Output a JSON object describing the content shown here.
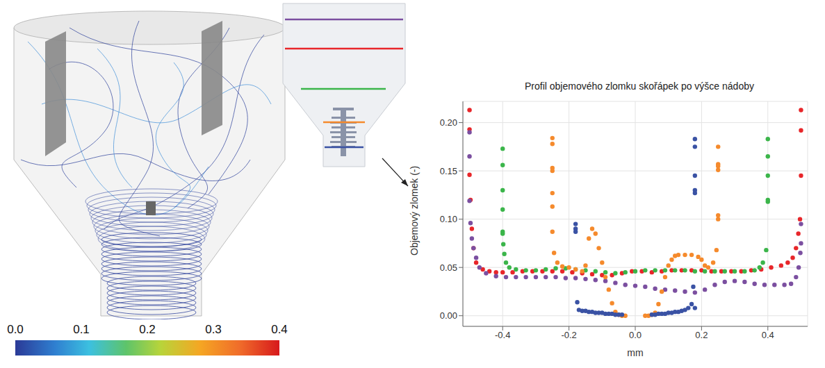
{
  "chart_data": {
    "type": "scatter",
    "title": "Profil objemového zlomku skořápek po výšce nádoby",
    "x_label": "mm",
    "y_label": "Objemový zlomek (-)",
    "xlim": [
      -0.52,
      0.52
    ],
    "xticks": [
      -0.4,
      -0.2,
      {
        "value": 0,
        "label": "0.0"
      },
      0.2,
      0.4
    ],
    "ylim": [
      -0.011,
      0.222
    ],
    "yticks": [
      {
        "value": 0,
        "label": "0.00"
      },
      0.05,
      {
        "value": 0.1,
        "label": "0.10"
      },
      0.15,
      {
        "value": 0.2,
        "label": "0.20"
      }
    ],
    "grid": true,
    "marker": "circle",
    "series": [
      {
        "color": "#e8262a",
        "x": [
          -0.5,
          -0.5,
          -0.5,
          -0.497,
          -0.493,
          -0.488,
          -0.48,
          -0.46,
          -0.44,
          -0.42,
          -0.4,
          -0.37,
          -0.34,
          -0.31,
          -0.28,
          -0.25,
          -0.22,
          -0.19,
          -0.16,
          -0.13,
          -0.1,
          -0.07,
          -0.04,
          -0.01,
          0.02,
          0.05,
          0.08,
          0.11,
          0.14,
          0.17,
          0.2,
          0.23,
          0.26,
          0.29,
          0.32,
          0.35,
          0.38,
          0.41,
          0.44,
          0.46,
          0.475,
          0.485,
          0.492,
          0.497,
          0.5,
          0.5,
          0.5
        ],
        "values": [
          0.213,
          0.193,
          0.146,
          0.12,
          0.09,
          0.07,
          0.055,
          0.048,
          0.046,
          0.045,
          0.045,
          0.045,
          0.046,
          0.046,
          0.046,
          0.046,
          0.046,
          0.045,
          0.044,
          0.043,
          0.042,
          0.042,
          0.044,
          0.046,
          0.046,
          0.045,
          0.046,
          0.047,
          0.047,
          0.047,
          0.047,
          0.046,
          0.046,
          0.046,
          0.046,
          0.047,
          0.048,
          0.05,
          0.052,
          0.055,
          0.06,
          0.07,
          0.085,
          0.1,
          0.145,
          0.192,
          0.213
        ]
      },
      {
        "color": "#7b4fa0",
        "x": [
          -0.5,
          -0.5,
          -0.5,
          -0.497,
          -0.493,
          -0.488,
          -0.48,
          -0.47,
          -0.45,
          -0.42,
          -0.39,
          -0.36,
          -0.33,
          -0.3,
          -0.27,
          -0.24,
          -0.21,
          -0.18,
          -0.15,
          -0.12,
          -0.09,
          -0.06,
          -0.03,
          0,
          0.03,
          0.06,
          0.09,
          0.12,
          0.15,
          0.18,
          0.21,
          0.24,
          0.27,
          0.3,
          0.33,
          0.36,
          0.39,
          0.42,
          0.45,
          0.47,
          0.485,
          0.493,
          0.498,
          0.5,
          0.5
        ],
        "values": [
          0.19,
          0.165,
          0.119,
          0.096,
          0.08,
          0.07,
          0.06,
          0.05,
          0.044,
          0.041,
          0.04,
          0.04,
          0.04,
          0.04,
          0.04,
          0.04,
          0.039,
          0.039,
          0.038,
          0.037,
          0.036,
          0.034,
          0.032,
          0.031,
          0.03,
          0.028,
          0.027,
          0.026,
          0.025,
          0.024,
          0.027,
          0.032,
          0.035,
          0.036,
          0.035,
          0.033,
          0.032,
          0.032,
          0.032,
          0.033,
          0.04,
          0.05,
          0.065,
          0.075,
          0.095
        ]
      },
      {
        "color": "#3bb54a",
        "x": [
          -0.4,
          -0.4,
          -0.4,
          -0.4,
          -0.4,
          -0.4,
          -0.398,
          -0.395,
          -0.39,
          -0.38,
          -0.36,
          -0.33,
          -0.3,
          -0.27,
          -0.24,
          -0.21,
          -0.18,
          -0.15,
          -0.12,
          -0.09,
          -0.06,
          -0.03,
          0,
          0.03,
          0.06,
          0.09,
          0.12,
          0.15,
          0.18,
          0.21,
          0.24,
          0.27,
          0.3,
          0.33,
          0.36,
          0.375,
          0.385,
          0.395,
          0.4,
          0.4,
          0.4,
          0.4,
          0.4
        ],
        "values": [
          0.173,
          0.156,
          0.13,
          0.11,
          0.087,
          0.085,
          0.074,
          0.064,
          0.055,
          0.05,
          0.048,
          0.047,
          0.047,
          0.048,
          0.049,
          0.049,
          0.048,
          0.047,
          0.046,
          0.045,
          0.044,
          0.045,
          0.046,
          0.047,
          0.047,
          0.047,
          0.047,
          0.047,
          0.046,
          0.046,
          0.046,
          0.046,
          0.046,
          0.046,
          0.047,
          0.05,
          0.055,
          0.068,
          0.12,
          0.118,
          0.145,
          0.165,
          0.183
        ]
      },
      {
        "color": "#f58a2c",
        "x": [
          -0.25,
          -0.25,
          -0.25,
          -0.25,
          -0.25,
          -0.25,
          -0.25,
          -0.245,
          -0.235,
          -0.22,
          -0.2,
          -0.18,
          -0.16,
          -0.15,
          -0.14,
          -0.13,
          -0.12,
          -0.11,
          -0.1,
          -0.09,
          -0.08,
          -0.07,
          -0.06,
          -0.05,
          -0.04,
          -0.03,
          0.03,
          0.04,
          0.05,
          0.06,
          0.07,
          0.08,
          0.09,
          0.1,
          0.11,
          0.12,
          0.13,
          0.15,
          0.17,
          0.19,
          0.2,
          0.21,
          0.22,
          0.235,
          0.245,
          0.25,
          0.25,
          0.25,
          0.25,
          0.25,
          0.25
        ],
        "values": [
          0.184,
          0.178,
          0.153,
          0.15,
          0.127,
          0.113,
          0.087,
          0.065,
          0.055,
          0.051,
          0.05,
          0.048,
          0.046,
          0.052,
          0.08,
          0.09,
          0.085,
          0.07,
          0.055,
          0.04,
          0.027,
          0.013,
          0.004,
          0.001,
          0,
          0,
          0,
          0,
          0.001,
          0.003,
          0.012,
          0.025,
          0.04,
          0.052,
          0.058,
          0.062,
          0.063,
          0.063,
          0.063,
          0.061,
          0.058,
          0.052,
          0.05,
          0.055,
          0.068,
          0.1,
          0.104,
          0.151,
          0.155,
          0.157,
          0.175
        ]
      },
      {
        "color": "#3a52a4",
        "x": [
          -0.18,
          -0.18,
          -0.18,
          -0.175,
          -0.17,
          -0.16,
          -0.15,
          -0.14,
          -0.13,
          -0.12,
          -0.11,
          -0.1,
          -0.09,
          -0.08,
          -0.07,
          -0.06,
          -0.05,
          -0.04,
          0.05,
          0.06,
          0.07,
          0.08,
          0.09,
          0.1,
          0.11,
          0.12,
          0.13,
          0.14,
          0.15,
          0.16,
          0.17,
          0.175,
          0.18,
          0.18,
          0.18,
          0.18,
          0.18,
          0.18
        ],
        "values": [
          0.095,
          0.09,
          0.087,
          0.014,
          0.006,
          0.005,
          0.005,
          0.004,
          0.004,
          0.003,
          0.003,
          0.003,
          0.002,
          0.002,
          0.002,
          0.001,
          0.001,
          0.001,
          0.001,
          0.001,
          0.002,
          0.002,
          0.002,
          0.003,
          0.003,
          0.004,
          0.004,
          0.005,
          0.006,
          0.008,
          0.012,
          0.03,
          0.127,
          0.13,
          0.145,
          0.175,
          0.183,
          0.008
        ]
      }
    ]
  },
  "colorbar": {
    "range": [
      0,
      0.4
    ],
    "ticks": [
      {
        "value": 0,
        "label": "0.0"
      },
      0.1,
      0.2,
      0.3,
      0.4
    ]
  }
}
